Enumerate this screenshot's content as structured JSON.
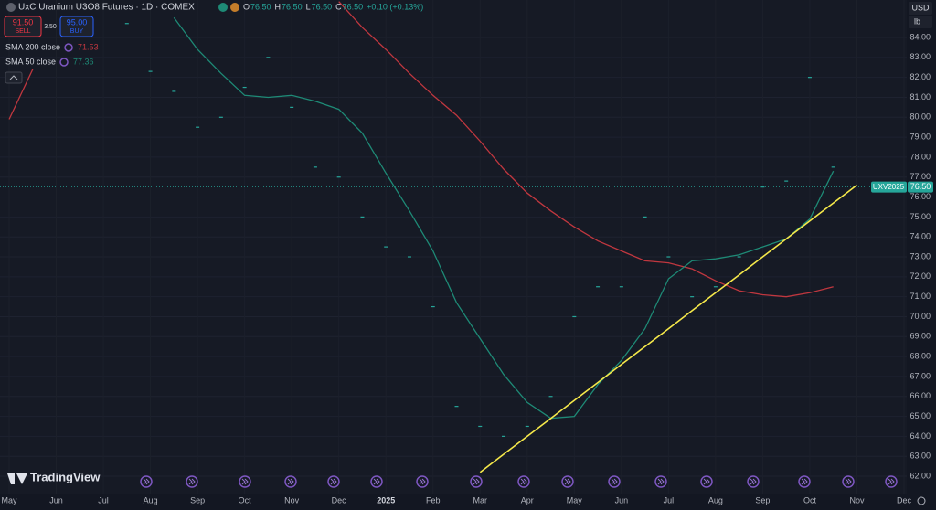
{
  "header": {
    "title": "UxC Uranium U3O8 Futures · 1D · COMEX",
    "quote": [
      {
        "label": "O",
        "value": "76.50"
      },
      {
        "label": "H",
        "value": "76.50"
      },
      {
        "label": "L",
        "value": "76.50"
      },
      {
        "label": "C",
        "value": "76.50"
      }
    ],
    "change": "+0.10 (+0.13%)"
  },
  "trade": {
    "sell_price": "91.50",
    "sell_label": "SELL",
    "spread": "3.50",
    "buy_price": "95.00",
    "buy_label": "BUY"
  },
  "units": {
    "currency": "USD",
    "unit": "lb"
  },
  "brand": "TradingView",
  "chart_data": {
    "type": "line",
    "categories": [
      "May",
      null,
      "Jun",
      null,
      "Jul",
      null,
      "Aug",
      null,
      "Sep",
      null,
      "Oct",
      null,
      "Nov",
      null,
      "Dec",
      null,
      "2025",
      null,
      "Feb",
      null,
      "Mar",
      null,
      "Apr",
      null,
      "May",
      null,
      "Jun",
      null,
      "Jul",
      null,
      "Aug",
      null,
      "Sep",
      null,
      "Oct",
      null,
      "Nov",
      null,
      "Dec"
    ],
    "series": [
      {
        "style": "dots",
        "color": "#26a69a",
        "values": [
          null,
          null,
          null,
          null,
          null,
          84.7,
          82.3,
          81.3,
          79.5,
          80.0,
          81.5,
          83.0,
          80.5,
          77.5,
          77.0,
          75.0,
          73.5,
          73.0,
          70.5,
          65.5,
          64.5,
          64.0,
          64.5,
          66.0,
          70.0,
          71.5,
          71.5,
          75.0,
          73.0,
          71.0,
          71.5,
          73.0,
          76.5,
          76.8,
          82.0,
          77.5,
          null,
          null,
          null
        ]
      },
      {
        "name": "SMA 200 close",
        "color": "#c0373f",
        "legend_value": 71.53,
        "values": [
          79.9,
          82.4,
          null,
          null,
          null,
          null,
          null,
          null,
          null,
          null,
          null,
          null,
          null,
          null,
          85.8,
          84.5,
          83.4,
          82.2,
          81.1,
          80.1,
          78.8,
          77.4,
          76.2,
          75.3,
          74.5,
          73.8,
          73.3,
          72.8,
          72.7,
          72.4,
          71.8,
          71.3,
          71.1,
          71.0,
          71.2,
          71.5,
          null,
          null,
          null
        ]
      },
      {
        "name": "SMA 50 close",
        "color": "#1e8a76",
        "legend_value": 77.36,
        "values": [
          null,
          null,
          null,
          null,
          null,
          null,
          null,
          85.0,
          83.4,
          82.2,
          81.1,
          81.0,
          81.1,
          80.8,
          80.4,
          79.2,
          77.2,
          75.3,
          73.3,
          70.7,
          68.9,
          67.1,
          65.7,
          64.9,
          65.0,
          66.6,
          67.8,
          69.4,
          71.9,
          72.8,
          72.9,
          73.1,
          73.5,
          73.9,
          74.9,
          77.3,
          null,
          null,
          null
        ]
      },
      {
        "style": "trendline",
        "color": "#f5e84a",
        "values": [
          null,
          null,
          null,
          null,
          null,
          null,
          null,
          null,
          null,
          null,
          null,
          null,
          null,
          null,
          null,
          null,
          null,
          null,
          null,
          null,
          62.2,
          63.1,
          64.0,
          64.9,
          65.8,
          66.7,
          67.6,
          68.5,
          69.4,
          70.3,
          71.2,
          72.1,
          73.0,
          73.9,
          74.8,
          75.7,
          76.6,
          null,
          null
        ]
      }
    ],
    "price_line": {
      "label": "UXV2025",
      "value": 76.5,
      "value_label": "76.50"
    },
    "ylim": [
      61.13,
      85.88
    ],
    "yticks": [
      {
        "value": 62,
        "label": "62.00"
      },
      {
        "value": 63,
        "label": "63.00"
      },
      {
        "value": 64,
        "label": "64.00"
      },
      {
        "value": 65,
        "label": "65.00"
      },
      {
        "value": 66,
        "label": "66.00"
      },
      {
        "value": 67,
        "label": "67.00"
      },
      {
        "value": 68,
        "label": "68.00"
      },
      {
        "value": 69,
        "label": "69.00"
      },
      {
        "value": 70,
        "label": "70.00"
      },
      {
        "value": 71,
        "label": "71.00"
      },
      {
        "value": 72,
        "label": "72.00"
      },
      {
        "value": 73,
        "label": "73.00"
      },
      {
        "value": 74,
        "label": "74.00"
      },
      {
        "value": 75,
        "label": "75.00"
      },
      {
        "value": 76,
        "label": "76.00"
      },
      {
        "value": 77,
        "label": "77.00"
      },
      {
        "value": 78,
        "label": "78.00"
      },
      {
        "value": 79,
        "label": "79.00"
      },
      {
        "value": 80,
        "label": "80.00"
      },
      {
        "value": 81,
        "label": "81.00"
      },
      {
        "value": 82,
        "label": "82.00"
      },
      {
        "value": 83,
        "label": "83.00"
      },
      {
        "value": 84,
        "label": "84.00"
      }
    ],
    "grid": true
  }
}
